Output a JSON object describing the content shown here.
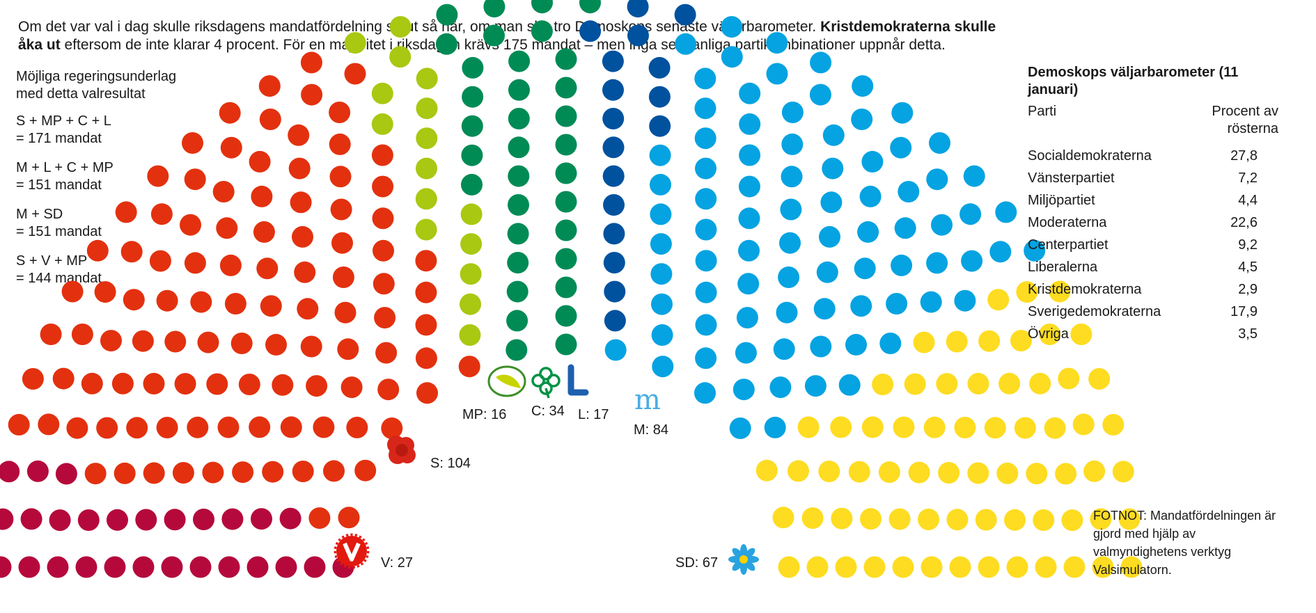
{
  "intro": {
    "text_a": "Om det var val i dag skulle riksdagens mandatfördelning se ut så här, om man ska tro Demoskops senaste väljarbarometer. ",
    "text_bold": "Kristdemokraterna skulle åka ut",
    "text_b": " eftersom de inte klarar 4 procent. För en majoritet i riksdagen krävs 175 mandat – men inga sedvanliga partikombinationer uppnår detta."
  },
  "coalitions": {
    "heading": "Möjliga regeringsunderlag med detta valresultat",
    "items": [
      {
        "parties": "S + MP + C + L",
        "seats": "= 171 mandat"
      },
      {
        "parties": "M + L + C + MP",
        "seats": "= 151 mandat"
      },
      {
        "parties": "M + SD",
        "seats": "= 151 mandat"
      },
      {
        "parties": "S + V + MP",
        "seats": "= 144 mandat"
      }
    ]
  },
  "table": {
    "title": "Demoskops väljarbarometer (11 januari)",
    "col_party": "Parti",
    "col_percent": "Procent av rösterna",
    "rows": [
      {
        "party": "Socialdemokraterna",
        "value": "27,8"
      },
      {
        "party": "Vänsterpartiet",
        "value": "7,2"
      },
      {
        "party": "Miljöpartiet",
        "value": "4,4"
      },
      {
        "party": "Moderaterna",
        "value": "22,6"
      },
      {
        "party": "Centerpartiet",
        "value": "9,2"
      },
      {
        "party": "Liberalerna",
        "value": "4,5"
      },
      {
        "party": "Kristdemokraterna",
        "value": "2,9"
      },
      {
        "party": "Sverigedemokraterna",
        "value": "17,9"
      },
      {
        "party": "Övriga",
        "value": "3,5"
      }
    ]
  },
  "footnote": "FOTNOT: Mandatfördelningen är gjord med hjälp av valmyndighetens verktyg Valsimulatorn.",
  "chart_data": {
    "type": "parliament-hemicycle",
    "total_seats": 349,
    "series": [
      {
        "name": "V",
        "label": "V: 27",
        "seats": 27,
        "color": "#b5093c",
        "logo": "v-logo-icon"
      },
      {
        "name": "S",
        "label": "S: 104",
        "seats": 104,
        "color": "#e3310f",
        "logo": "rose-icon"
      },
      {
        "name": "MP",
        "label": "MP: 16",
        "seats": 16,
        "color": "#a8c812",
        "logo": "dandelion-leaf-icon"
      },
      {
        "name": "C",
        "label": "C: 34",
        "seats": 34,
        "color": "#008b55",
        "logo": "clover-icon"
      },
      {
        "name": "L",
        "label": "L: 17",
        "seats": 17,
        "color": "#00529f",
        "logo": "liberal-l-icon"
      },
      {
        "name": "M",
        "label": "M: 84",
        "seats": 84,
        "color": "#05a3e2",
        "logo": "moderate-m-icon"
      },
      {
        "name": "SD",
        "label": "SD: 67",
        "seats": 67,
        "color": "#fedc21",
        "logo": "blue-flower-icon"
      }
    ]
  }
}
